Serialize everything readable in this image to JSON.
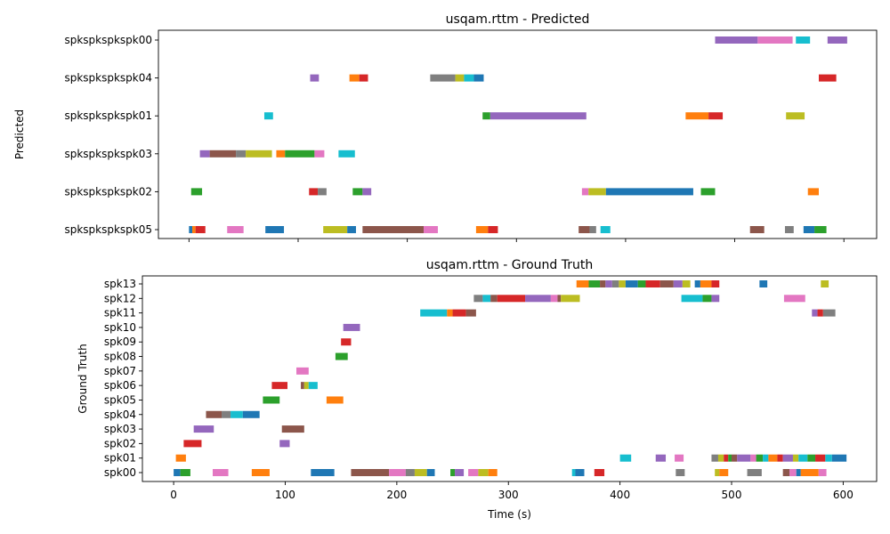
{
  "chart_data": [
    {
      "type": "bar",
      "title": "usqam.rttm - Predicted",
      "xlabel": "",
      "ylabel": "Predicted",
      "xlim": [
        -28,
        630
      ],
      "xticks": [
        0,
        100,
        200,
        300,
        400,
        500,
        600
      ],
      "show_xtick_labels": false,
      "grid": false,
      "categories": [
        "spkspkspkspk00",
        "spkspkspkspk04",
        "spkspkspkspk01",
        "spkspkspkspk03",
        "spkspkspkspk02",
        "spkspkspkspk05"
      ],
      "segments": [
        {
          "row": 0,
          "start": 482,
          "end": 521,
          "color": "#9467bd"
        },
        {
          "row": 0,
          "start": 521,
          "end": 553,
          "color": "#e377c2"
        },
        {
          "row": 0,
          "start": 556,
          "end": 569,
          "color": "#17becf"
        },
        {
          "row": 0,
          "start": 585,
          "end": 603,
          "color": "#9467bd"
        },
        {
          "row": 1,
          "start": 111,
          "end": 119,
          "color": "#9467bd"
        },
        {
          "row": 1,
          "start": 147,
          "end": 156,
          "color": "#ff7f0e"
        },
        {
          "row": 1,
          "start": 156,
          "end": 164,
          "color": "#d62728"
        },
        {
          "row": 1,
          "start": 221,
          "end": 244,
          "color": "#7f7f7f"
        },
        {
          "row": 1,
          "start": 244,
          "end": 252,
          "color": "#bcbd22"
        },
        {
          "row": 1,
          "start": 252,
          "end": 261,
          "color": "#17becf"
        },
        {
          "row": 1,
          "start": 261,
          "end": 270,
          "color": "#1f77b4"
        },
        {
          "row": 1,
          "start": 577,
          "end": 593,
          "color": "#d62728"
        },
        {
          "row": 2,
          "start": 69,
          "end": 77,
          "color": "#17becf"
        },
        {
          "row": 2,
          "start": 269,
          "end": 276,
          "color": "#2ca02c"
        },
        {
          "row": 2,
          "start": 276,
          "end": 364,
          "color": "#9467bd"
        },
        {
          "row": 2,
          "start": 455,
          "end": 476,
          "color": "#ff7f0e"
        },
        {
          "row": 2,
          "start": 476,
          "end": 489,
          "color": "#d62728"
        },
        {
          "row": 2,
          "start": 547,
          "end": 564,
          "color": "#bcbd22"
        },
        {
          "row": 3,
          "start": 10,
          "end": 19,
          "color": "#9467bd"
        },
        {
          "row": 3,
          "start": 19,
          "end": 43,
          "color": "#8c564b"
        },
        {
          "row": 3,
          "start": 43,
          "end": 52,
          "color": "#7f7f7f"
        },
        {
          "row": 3,
          "start": 52,
          "end": 76,
          "color": "#bcbd22"
        },
        {
          "row": 3,
          "start": 80,
          "end": 88,
          "color": "#ff7f0e"
        },
        {
          "row": 3,
          "start": 88,
          "end": 115,
          "color": "#2ca02c"
        },
        {
          "row": 3,
          "start": 115,
          "end": 124,
          "color": "#e377c2"
        },
        {
          "row": 3,
          "start": 137,
          "end": 152,
          "color": "#17becf"
        },
        {
          "row": 4,
          "start": 2,
          "end": 12,
          "color": "#2ca02c"
        },
        {
          "row": 4,
          "start": 110,
          "end": 118,
          "color": "#d62728"
        },
        {
          "row": 4,
          "start": 118,
          "end": 126,
          "color": "#7f7f7f"
        },
        {
          "row": 4,
          "start": 150,
          "end": 159,
          "color": "#2ca02c"
        },
        {
          "row": 4,
          "start": 159,
          "end": 167,
          "color": "#9467bd"
        },
        {
          "row": 4,
          "start": 360,
          "end": 366,
          "color": "#e377c2"
        },
        {
          "row": 4,
          "start": 366,
          "end": 382,
          "color": "#bcbd22"
        },
        {
          "row": 4,
          "start": 382,
          "end": 462,
          "color": "#1f77b4"
        },
        {
          "row": 4,
          "start": 469,
          "end": 482,
          "color": "#2ca02c"
        },
        {
          "row": 4,
          "start": 567,
          "end": 577,
          "color": "#ff7f0e"
        },
        {
          "row": 5,
          "start": 0,
          "end": 3,
          "color": "#1f77b4"
        },
        {
          "row": 5,
          "start": 3,
          "end": 6,
          "color": "#ff7f0e"
        },
        {
          "row": 5,
          "start": 6,
          "end": 15,
          "color": "#d62728"
        },
        {
          "row": 5,
          "start": 35,
          "end": 50,
          "color": "#e377c2"
        },
        {
          "row": 5,
          "start": 70,
          "end": 87,
          "color": "#1f77b4"
        },
        {
          "row": 5,
          "start": 123,
          "end": 145,
          "color": "#bcbd22"
        },
        {
          "row": 5,
          "start": 145,
          "end": 153,
          "color": "#1f77b4"
        },
        {
          "row": 5,
          "start": 159,
          "end": 215,
          "color": "#8c564b"
        },
        {
          "row": 5,
          "start": 215,
          "end": 228,
          "color": "#e377c2"
        },
        {
          "row": 5,
          "start": 263,
          "end": 274,
          "color": "#ff7f0e"
        },
        {
          "row": 5,
          "start": 274,
          "end": 283,
          "color": "#d62728"
        },
        {
          "row": 5,
          "start": 357,
          "end": 367,
          "color": "#8c564b"
        },
        {
          "row": 5,
          "start": 367,
          "end": 373,
          "color": "#7f7f7f"
        },
        {
          "row": 5,
          "start": 377,
          "end": 386,
          "color": "#17becf"
        },
        {
          "row": 5,
          "start": 514,
          "end": 527,
          "color": "#8c564b"
        },
        {
          "row": 5,
          "start": 546,
          "end": 554,
          "color": "#7f7f7f"
        },
        {
          "row": 5,
          "start": 563,
          "end": 573,
          "color": "#1f77b4"
        },
        {
          "row": 5,
          "start": 573,
          "end": 584,
          "color": "#2ca02c"
        }
      ]
    },
    {
      "type": "bar",
      "title": "usqam.rttm - Ground Truth",
      "xlabel": "Time (s)",
      "ylabel": "Ground Truth",
      "xlim": [
        -28,
        630
      ],
      "xticks": [
        0,
        100,
        200,
        300,
        400,
        500,
        600
      ],
      "show_xtick_labels": true,
      "grid": false,
      "categories": [
        "spk13",
        "spk12",
        "spk11",
        "spk10",
        "spk09",
        "spk08",
        "spk07",
        "spk06",
        "spk05",
        "spk04",
        "spk03",
        "spk02",
        "spk01",
        "spk00"
      ],
      "segments": [
        {
          "row": 0,
          "start": 361,
          "end": 372,
          "color": "#ff7f0e"
        },
        {
          "row": 0,
          "start": 372,
          "end": 382,
          "color": "#2ca02c"
        },
        {
          "row": 0,
          "start": 382,
          "end": 387,
          "color": "#8c564b"
        },
        {
          "row": 0,
          "start": 387,
          "end": 393,
          "color": "#9467bd"
        },
        {
          "row": 0,
          "start": 393,
          "end": 399,
          "color": "#7f7f7f"
        },
        {
          "row": 0,
          "start": 399,
          "end": 405,
          "color": "#bcbd22"
        },
        {
          "row": 0,
          "start": 405,
          "end": 416,
          "color": "#1f77b4"
        },
        {
          "row": 0,
          "start": 416,
          "end": 423,
          "color": "#2ca02c"
        },
        {
          "row": 0,
          "start": 423,
          "end": 436,
          "color": "#d62728"
        },
        {
          "row": 0,
          "start": 436,
          "end": 448,
          "color": "#8c564b"
        },
        {
          "row": 0,
          "start": 448,
          "end": 456,
          "color": "#9467bd"
        },
        {
          "row": 0,
          "start": 456,
          "end": 463,
          "color": "#bcbd22"
        },
        {
          "row": 0,
          "start": 467,
          "end": 472,
          "color": "#1f77b4"
        },
        {
          "row": 0,
          "start": 472,
          "end": 482,
          "color": "#ff7f0e"
        },
        {
          "row": 0,
          "start": 482,
          "end": 489,
          "color": "#d62728"
        },
        {
          "row": 0,
          "start": 525,
          "end": 532,
          "color": "#1f77b4"
        },
        {
          "row": 0,
          "start": 580,
          "end": 587,
          "color": "#bcbd22"
        },
        {
          "row": 1,
          "start": 269,
          "end": 277,
          "color": "#7f7f7f"
        },
        {
          "row": 1,
          "start": 277,
          "end": 284,
          "color": "#17becf"
        },
        {
          "row": 1,
          "start": 284,
          "end": 290,
          "color": "#8c564b"
        },
        {
          "row": 1,
          "start": 290,
          "end": 315,
          "color": "#d62728"
        },
        {
          "row": 1,
          "start": 315,
          "end": 338,
          "color": "#9467bd"
        },
        {
          "row": 1,
          "start": 338,
          "end": 344,
          "color": "#e377c2"
        },
        {
          "row": 1,
          "start": 344,
          "end": 347,
          "color": "#8c564b"
        },
        {
          "row": 1,
          "start": 347,
          "end": 364,
          "color": "#bcbd22"
        },
        {
          "row": 1,
          "start": 455,
          "end": 474,
          "color": "#17becf"
        },
        {
          "row": 1,
          "start": 474,
          "end": 482,
          "color": "#2ca02c"
        },
        {
          "row": 1,
          "start": 482,
          "end": 489,
          "color": "#9467bd"
        },
        {
          "row": 1,
          "start": 547,
          "end": 566,
          "color": "#e377c2"
        },
        {
          "row": 2,
          "start": 221,
          "end": 245,
          "color": "#17becf"
        },
        {
          "row": 2,
          "start": 245,
          "end": 250,
          "color": "#ff7f0e"
        },
        {
          "row": 2,
          "start": 250,
          "end": 262,
          "color": "#d62728"
        },
        {
          "row": 2,
          "start": 262,
          "end": 271,
          "color": "#8c564b"
        },
        {
          "row": 2,
          "start": 572,
          "end": 577,
          "color": "#9467bd"
        },
        {
          "row": 2,
          "start": 577,
          "end": 582,
          "color": "#d62728"
        },
        {
          "row": 2,
          "start": 582,
          "end": 593,
          "color": "#7f7f7f"
        },
        {
          "row": 3,
          "start": 152,
          "end": 167,
          "color": "#9467bd"
        },
        {
          "row": 4,
          "start": 150,
          "end": 159,
          "color": "#d62728"
        },
        {
          "row": 5,
          "start": 145,
          "end": 156,
          "color": "#2ca02c"
        },
        {
          "row": 6,
          "start": 110,
          "end": 121,
          "color": "#e377c2"
        },
        {
          "row": 7,
          "start": 88,
          "end": 102,
          "color": "#d62728"
        },
        {
          "row": 7,
          "start": 114,
          "end": 117,
          "color": "#8c564b"
        },
        {
          "row": 7,
          "start": 117,
          "end": 121,
          "color": "#bcbd22"
        },
        {
          "row": 7,
          "start": 121,
          "end": 129,
          "color": "#17becf"
        },
        {
          "row": 8,
          "start": 80,
          "end": 95,
          "color": "#2ca02c"
        },
        {
          "row": 8,
          "start": 137,
          "end": 152,
          "color": "#ff7f0e"
        },
        {
          "row": 9,
          "start": 29,
          "end": 43,
          "color": "#8c564b"
        },
        {
          "row": 9,
          "start": 43,
          "end": 51,
          "color": "#7f7f7f"
        },
        {
          "row": 9,
          "start": 51,
          "end": 62,
          "color": "#17becf"
        },
        {
          "row": 9,
          "start": 62,
          "end": 77,
          "color": "#1f77b4"
        },
        {
          "row": 10,
          "start": 18,
          "end": 36,
          "color": "#9467bd"
        },
        {
          "row": 10,
          "start": 97,
          "end": 117,
          "color": "#8c564b"
        },
        {
          "row": 11,
          "start": 9,
          "end": 25,
          "color": "#d62728"
        },
        {
          "row": 11,
          "start": 95,
          "end": 104,
          "color": "#9467bd"
        },
        {
          "row": 12,
          "start": 2,
          "end": 11,
          "color": "#ff7f0e"
        },
        {
          "row": 12,
          "start": 400,
          "end": 410,
          "color": "#17becf"
        },
        {
          "row": 12,
          "start": 432,
          "end": 441,
          "color": "#9467bd"
        },
        {
          "row": 12,
          "start": 449,
          "end": 457,
          "color": "#e377c2"
        },
        {
          "row": 12,
          "start": 482,
          "end": 488,
          "color": "#7f7f7f"
        },
        {
          "row": 12,
          "start": 488,
          "end": 493,
          "color": "#bcbd22"
        },
        {
          "row": 12,
          "start": 493,
          "end": 497,
          "color": "#d62728"
        },
        {
          "row": 12,
          "start": 497,
          "end": 500,
          "color": "#2ca02c"
        },
        {
          "row": 12,
          "start": 500,
          "end": 505,
          "color": "#8c564b"
        },
        {
          "row": 12,
          "start": 505,
          "end": 517,
          "color": "#9467bd"
        },
        {
          "row": 12,
          "start": 517,
          "end": 522,
          "color": "#e377c2"
        },
        {
          "row": 12,
          "start": 522,
          "end": 528,
          "color": "#2ca02c"
        },
        {
          "row": 12,
          "start": 528,
          "end": 533,
          "color": "#17becf"
        },
        {
          "row": 12,
          "start": 533,
          "end": 541,
          "color": "#ff7f0e"
        },
        {
          "row": 12,
          "start": 541,
          "end": 546,
          "color": "#d62728"
        },
        {
          "row": 12,
          "start": 546,
          "end": 555,
          "color": "#9467bd"
        },
        {
          "row": 12,
          "start": 555,
          "end": 560,
          "color": "#bcbd22"
        },
        {
          "row": 12,
          "start": 560,
          "end": 568,
          "color": "#17becf"
        },
        {
          "row": 12,
          "start": 568,
          "end": 575,
          "color": "#2ca02c"
        },
        {
          "row": 12,
          "start": 575,
          "end": 584,
          "color": "#d62728"
        },
        {
          "row": 12,
          "start": 584,
          "end": 590,
          "color": "#17becf"
        },
        {
          "row": 12,
          "start": 590,
          "end": 603,
          "color": "#1f77b4"
        },
        {
          "row": 13,
          "start": 0,
          "end": 6,
          "color": "#1f77b4"
        },
        {
          "row": 13,
          "start": 6,
          "end": 15,
          "color": "#2ca02c"
        },
        {
          "row": 13,
          "start": 35,
          "end": 49,
          "color": "#e377c2"
        },
        {
          "row": 13,
          "start": 70,
          "end": 86,
          "color": "#ff7f0e"
        },
        {
          "row": 13,
          "start": 123,
          "end": 144,
          "color": "#1f77b4"
        },
        {
          "row": 13,
          "start": 159,
          "end": 193,
          "color": "#8c564b"
        },
        {
          "row": 13,
          "start": 193,
          "end": 208,
          "color": "#e377c2"
        },
        {
          "row": 13,
          "start": 208,
          "end": 216,
          "color": "#7f7f7f"
        },
        {
          "row": 13,
          "start": 216,
          "end": 227,
          "color": "#bcbd22"
        },
        {
          "row": 13,
          "start": 227,
          "end": 234,
          "color": "#1f77b4"
        },
        {
          "row": 13,
          "start": 248,
          "end": 252,
          "color": "#2ca02c"
        },
        {
          "row": 13,
          "start": 252,
          "end": 260,
          "color": "#9467bd"
        },
        {
          "row": 13,
          "start": 264,
          "end": 273,
          "color": "#e377c2"
        },
        {
          "row": 13,
          "start": 273,
          "end": 282,
          "color": "#bcbd22"
        },
        {
          "row": 13,
          "start": 282,
          "end": 290,
          "color": "#ff7f0e"
        },
        {
          "row": 13,
          "start": 357,
          "end": 360,
          "color": "#17becf"
        },
        {
          "row": 13,
          "start": 360,
          "end": 368,
          "color": "#1f77b4"
        },
        {
          "row": 13,
          "start": 377,
          "end": 386,
          "color": "#d62728"
        },
        {
          "row": 13,
          "start": 450,
          "end": 458,
          "color": "#7f7f7f"
        },
        {
          "row": 13,
          "start": 485,
          "end": 489,
          "color": "#bcbd22"
        },
        {
          "row": 13,
          "start": 489,
          "end": 497,
          "color": "#ff7f0e"
        },
        {
          "row": 13,
          "start": 514,
          "end": 527,
          "color": "#7f7f7f"
        },
        {
          "row": 13,
          "start": 546,
          "end": 552,
          "color": "#8c564b"
        },
        {
          "row": 13,
          "start": 552,
          "end": 558,
          "color": "#e377c2"
        },
        {
          "row": 13,
          "start": 558,
          "end": 562,
          "color": "#1f77b4"
        },
        {
          "row": 13,
          "start": 562,
          "end": 578,
          "color": "#ff7f0e"
        },
        {
          "row": 13,
          "start": 578,
          "end": 585,
          "color": "#e377c2"
        }
      ]
    }
  ]
}
